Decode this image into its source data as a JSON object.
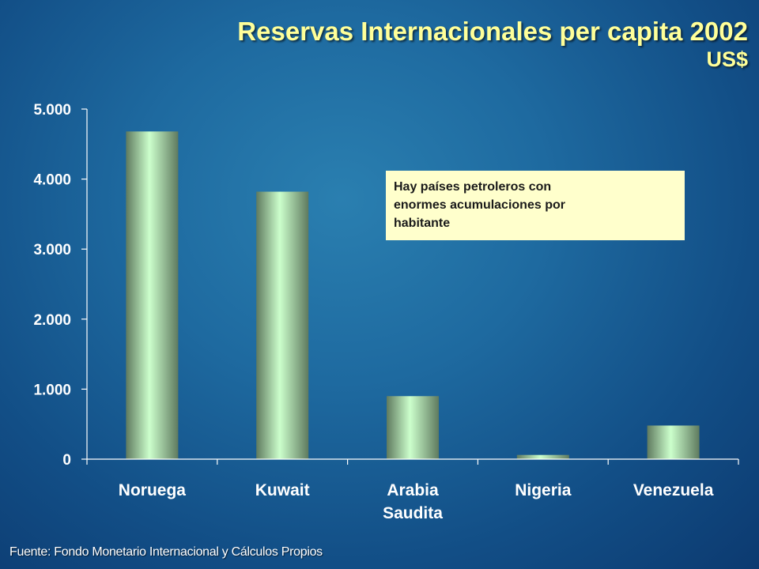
{
  "header": {
    "title": "Reservas Internacionales per capita 2002",
    "subtitle": "US$"
  },
  "annotation": {
    "text_lines": [
      "Hay países petroleros con",
      "enormes acumulaciones por",
      "habitante"
    ]
  },
  "footer": {
    "source": "Fuente: Fondo Monetario Internacional y Cálculos Propios"
  },
  "colors": {
    "title": "#ffff99",
    "bar_light": "#ccffcc",
    "bar_dark": "#5f7a5f",
    "callout_bg": "#ffffcc"
  },
  "chart_data": {
    "type": "bar",
    "title": "Reservas Internacionales per capita 2002",
    "subtitle": "US$",
    "categories": [
      [
        "Noruega"
      ],
      [
        "Kuwait"
      ],
      [
        "Arabia",
        "Saudita"
      ],
      [
        "Nigeria"
      ],
      [
        "Venezuela"
      ]
    ],
    "values": [
      4680,
      3820,
      900,
      60,
      480
    ],
    "ylim": [
      0,
      5000
    ],
    "yticks": [
      0,
      1000,
      2000,
      3000,
      4000,
      5000
    ],
    "ytick_labels": [
      "0",
      "1.000",
      "2.000",
      "3.000",
      "4.000",
      "5.000"
    ],
    "xlabel": "",
    "ylabel": "",
    "grid": false,
    "legend": "none"
  }
}
